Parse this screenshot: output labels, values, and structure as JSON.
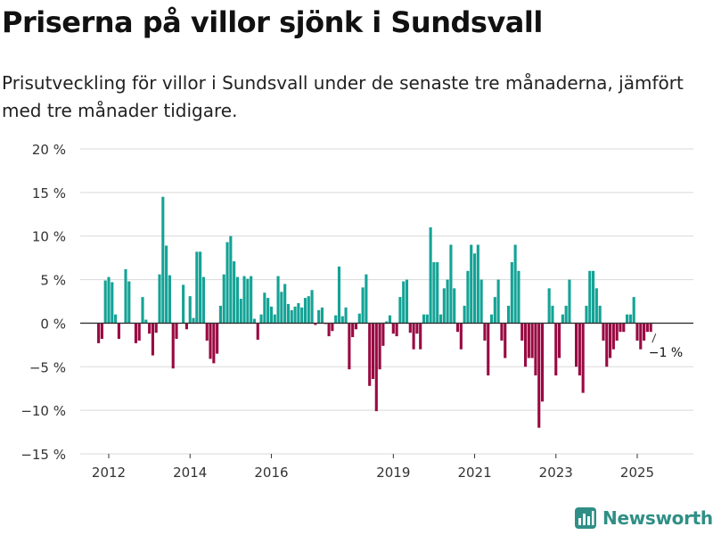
{
  "title": "Priserna på villor sjönk i Sundsvall",
  "subtitle": "Prisutveckling för villor i Sundsvall under de senaste tre månaderna, jämfört med tre månader tidigare.",
  "brand": "Newsworthy",
  "colors": {
    "positive": "#14a396",
    "negative": "#990942",
    "grid": "#d9d9d9",
    "zero": "#333333",
    "brand": "#2f8f86"
  },
  "chart_data": {
    "type": "bar",
    "title": "Priserna på villor sjönk i Sundsvall",
    "xlabel": "",
    "ylabel": "",
    "ylim": [
      -15,
      20
    ],
    "y_ticks": [
      -15,
      -10,
      -5,
      0,
      5,
      10,
      15,
      20
    ],
    "y_tick_labels": [
      "−15 %",
      "−10 %",
      "−5 %",
      "0 %",
      "5 %",
      "10 %",
      "15 %",
      "20 %"
    ],
    "x_ticks": [
      2012,
      2014,
      2016,
      2019,
      2021,
      2023,
      2025
    ],
    "x_tick_labels": [
      "2012",
      "2014",
      "2016",
      "2019",
      "2021",
      "2023",
      "2025"
    ],
    "x_start": 2011.75,
    "step_years": 0.08333,
    "annotation": {
      "label": "−1 %",
      "value": -1,
      "month_index": 165
    },
    "values": [
      -2.3,
      -1.8,
      4.9,
      5.3,
      4.7,
      1.0,
      -1.8,
      0.0,
      6.2,
      4.8,
      0.0,
      -2.3,
      -2.0,
      3.0,
      0.4,
      -1.2,
      -3.7,
      -1.1,
      5.6,
      14.5,
      8.9,
      5.5,
      -5.2,
      -1.8,
      0.0,
      4.4,
      -0.7,
      3.1,
      0.6,
      8.2,
      8.2,
      5.3,
      -2.0,
      -4.1,
      -4.6,
      -3.5,
      2.0,
      5.6,
      9.3,
      10.0,
      7.1,
      5.3,
      2.8,
      5.4,
      5.1,
      5.4,
      0.5,
      -1.9,
      1.0,
      3.5,
      2.9,
      1.9,
      1.0,
      5.4,
      3.6,
      4.5,
      2.2,
      1.5,
      1.9,
      2.3,
      1.8,
      2.9,
      3.1,
      3.8,
      -0.2,
      1.5,
      1.8,
      -0.1,
      -1.5,
      -0.9,
      0.9,
      6.5,
      0.8,
      1.8,
      -5.3,
      -1.6,
      -0.7,
      1.1,
      4.1,
      5.6,
      -7.2,
      -6.4,
      -10.1,
      -5.3,
      -2.6,
      0.2,
      0.9,
      -1.2,
      -1.5,
      3.0,
      4.8,
      5.0,
      -1.1,
      -3.0,
      -1.2,
      -3.0,
      1.0,
      1.0,
      11.0,
      7.0,
      7.0,
      1.0,
      4.0,
      5.0,
      9.0,
      4.0,
      -1.0,
      -3.0,
      2.0,
      6.0,
      9.0,
      8.0,
      9.0,
      5.0,
      -2.0,
      -6.0,
      1.0,
      3.0,
      5.0,
      -2.0,
      -4.0,
      2.0,
      7.0,
      9.0,
      6.0,
      -2.0,
      -5.0,
      -4.0,
      -4.0,
      -6.0,
      -12.0,
      -9.0,
      0.0,
      4.0,
      2.0,
      -6.0,
      -4.0,
      1.0,
      2.0,
      5.0,
      0.0,
      -5.0,
      -6.0,
      -8.0,
      2.0,
      6.0,
      6.0,
      4.0,
      2.0,
      -2.0,
      -5.0,
      -4.0,
      -3.0,
      -2.0,
      -1.0,
      -1.0,
      1.0,
      1.0,
      3.0,
      -2.0,
      -3.0,
      -2.0,
      -1.0,
      -1.0
    ]
  }
}
